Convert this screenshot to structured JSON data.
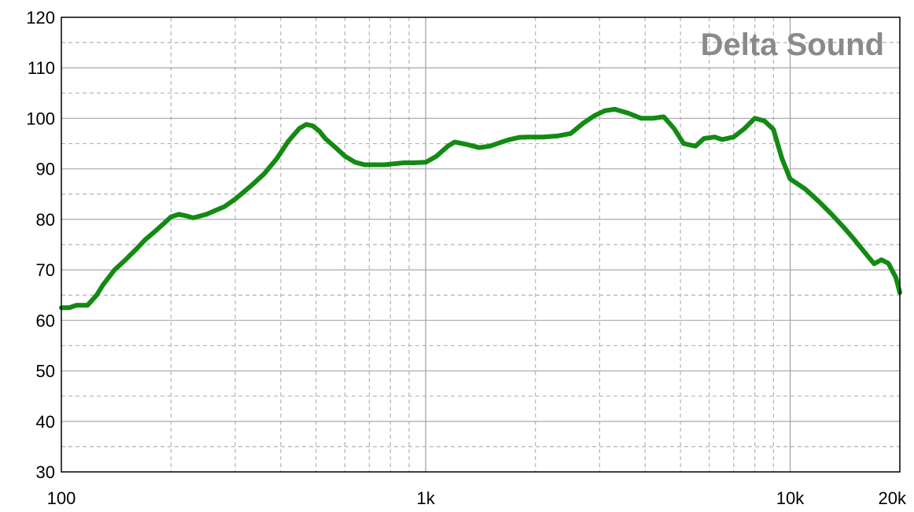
{
  "chart_data": {
    "type": "line",
    "title": "",
    "xlabel": "",
    "ylabel": "",
    "x_scale": "log",
    "xlim": [
      100,
      20000
    ],
    "ylim": [
      30,
      120
    ],
    "grid": true,
    "watermark": "Delta Sound",
    "colors": {
      "line": "#138a13",
      "grid_major": "#a9a9a9",
      "grid_minor": "#b4b4b4",
      "watermark": "#8a8a8a"
    },
    "x_ticks": [
      {
        "value": 100,
        "label": "100"
      },
      {
        "value": 1000,
        "label": "1k"
      },
      {
        "value": 10000,
        "label": "10k"
      },
      {
        "value": 20000,
        "label": "20k"
      }
    ],
    "y_ticks": [
      30,
      40,
      50,
      60,
      70,
      80,
      90,
      100,
      110,
      120
    ],
    "series": [
      {
        "name": "",
        "x": [
          100,
          105,
          110,
          118,
          125,
          130,
          140,
          150,
          160,
          170,
          180,
          190,
          200,
          210,
          220,
          230,
          250,
          280,
          300,
          330,
          360,
          390,
          420,
          450,
          470,
          490,
          510,
          530,
          570,
          600,
          640,
          680,
          720,
          770,
          820,
          870,
          930,
          1000,
          1070,
          1150,
          1200,
          1300,
          1400,
          1500,
          1600,
          1700,
          1800,
          1900,
          2100,
          2300,
          2500,
          2700,
          2900,
          3100,
          3300,
          3600,
          3900,
          4200,
          4500,
          4800,
          5100,
          5500,
          5800,
          6200,
          6500,
          7000,
          7500,
          8000,
          8500,
          9000,
          9500,
          10000,
          11000,
          12000,
          13000,
          14000,
          15000,
          16000,
          17000,
          17800,
          18600,
          19500,
          20000
        ],
        "y": [
          62.5,
          62.5,
          63.0,
          63.0,
          65.0,
          67.0,
          70.0,
          72.0,
          74.0,
          76.0,
          77.5,
          79.0,
          80.5,
          81.0,
          80.7,
          80.3,
          81.0,
          82.5,
          84.0,
          86.5,
          89.0,
          92.0,
          95.5,
          98.0,
          98.8,
          98.5,
          97.5,
          96.0,
          94.0,
          92.5,
          91.3,
          90.8,
          90.8,
          90.8,
          91.0,
          91.2,
          91.2,
          91.3,
          92.5,
          94.5,
          95.3,
          94.8,
          94.2,
          94.5,
          95.2,
          95.8,
          96.2,
          96.3,
          96.3,
          96.5,
          97.0,
          99.0,
          100.5,
          101.5,
          101.8,
          101.0,
          100.0,
          100.0,
          100.3,
          98.0,
          95.0,
          94.5,
          96.0,
          96.3,
          95.8,
          96.3,
          98.0,
          100.0,
          99.5,
          97.8,
          92.0,
          88.0,
          86.0,
          83.5,
          81.0,
          78.5,
          76.0,
          73.5,
          71.2,
          72.0,
          71.3,
          68.5,
          65.5
        ]
      }
    ]
  }
}
